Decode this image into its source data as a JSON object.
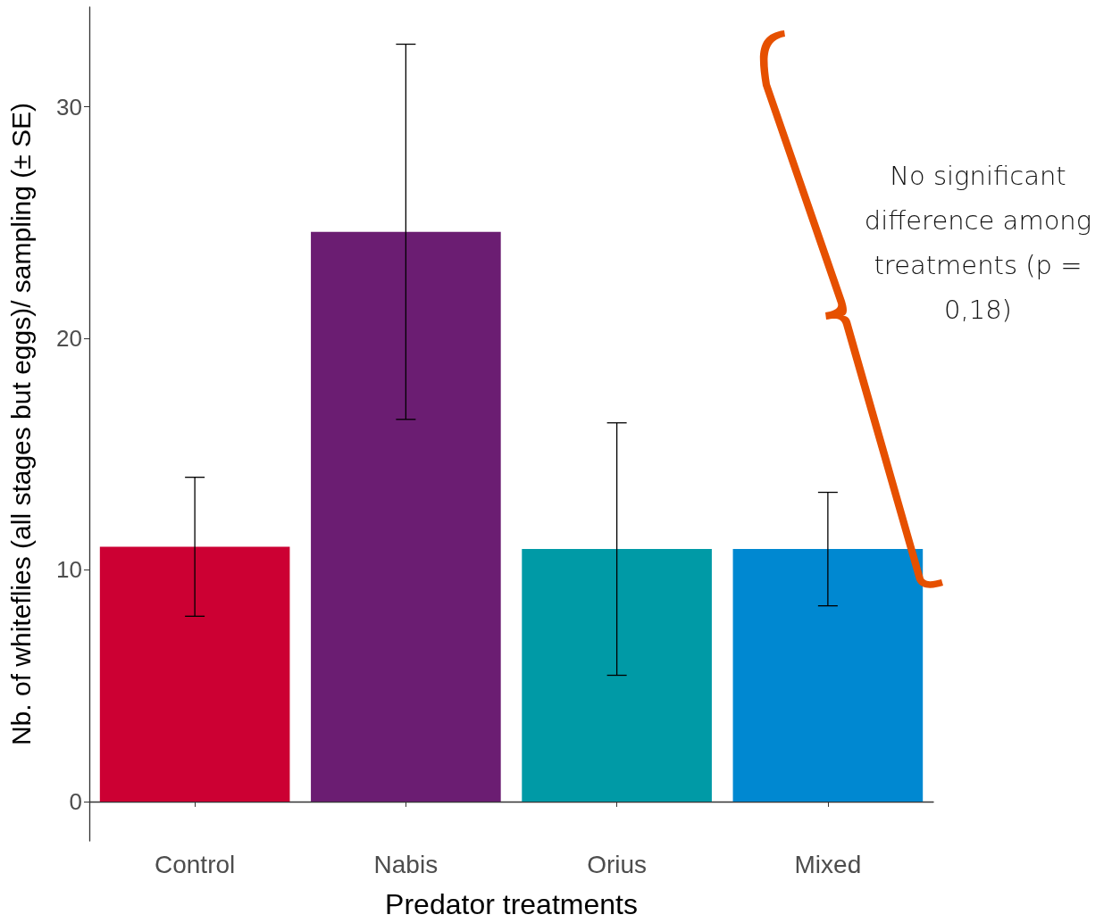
{
  "chart_data": {
    "type": "bar",
    "xlabel": "Predator treatments",
    "ylabel": "Nb. of whiteflies (all stages but eggs)/ sampling (± SE)",
    "categories": [
      "Control",
      "Nabis",
      "Orius",
      "Mixed"
    ],
    "values": [
      11.0,
      24.6,
      10.9,
      10.9
    ],
    "colors": [
      "#cc0033",
      "#6b1d72",
      "#009aa6",
      "#0088d1"
    ],
    "errors": [
      3.0,
      8.1,
      5.45,
      2.45
    ],
    "ylim": [
      -1.7,
      34.3
    ],
    "yticks": [
      0,
      10,
      20,
      30
    ],
    "grid": false,
    "annotations": [
      "No significant difference among treatments (p = 0,18)"
    ]
  }
}
